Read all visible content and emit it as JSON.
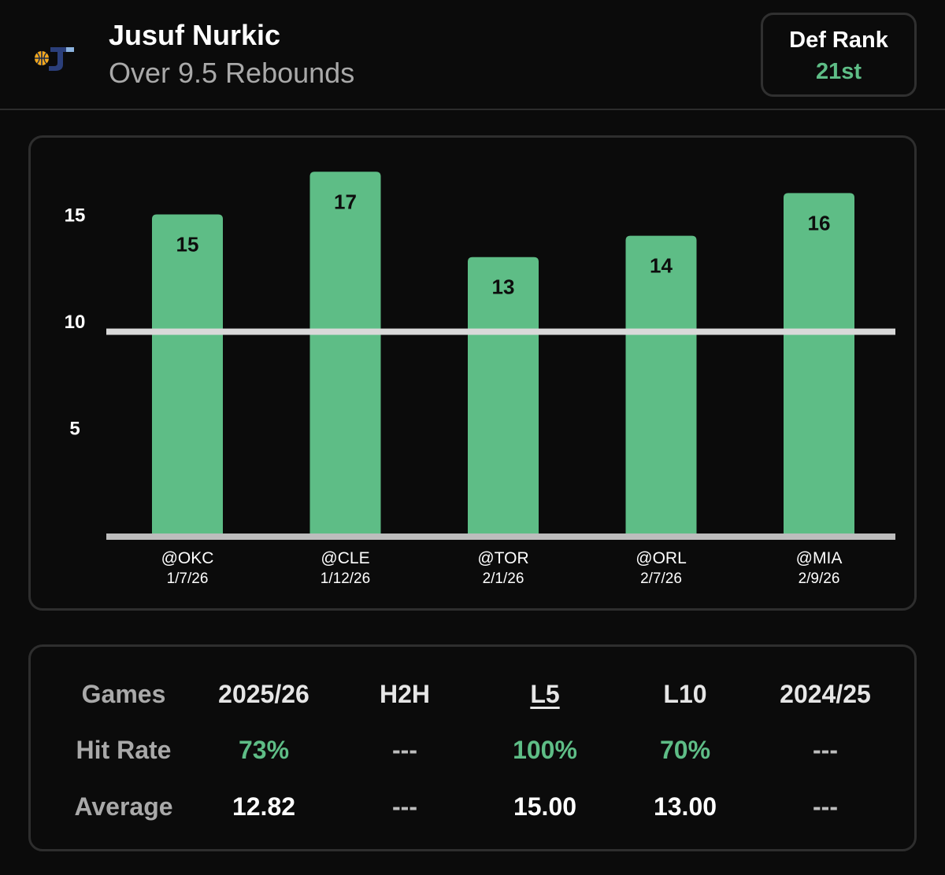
{
  "header": {
    "player_name": "Jusuf Nurkic",
    "prop_line": "Over 9.5 Rebounds",
    "logo_icon": "utah-jazz-logo-icon",
    "def_rank_label": "Def Rank",
    "def_rank_value": "21st"
  },
  "colors": {
    "background": "#0b0b0b",
    "bar": "#5ebd86",
    "accent_green": "#5ebd86",
    "threshold_line": "#d9d9d9",
    "baseline": "#bdbdbd",
    "card_border": "#2e2e2e"
  },
  "chart_data": {
    "type": "bar",
    "title": "",
    "xlabel": "",
    "ylabel": "",
    "categories": [
      "@OKC",
      "@CLE",
      "@TOR",
      "@ORL",
      "@MIA"
    ],
    "dates": [
      "1/7/26",
      "1/12/26",
      "2/1/26",
      "2/7/26",
      "2/9/26"
    ],
    "values": [
      15,
      17,
      13,
      14,
      16
    ],
    "value_labels": [
      "15",
      "17",
      "13",
      "14",
      "16"
    ],
    "yticks": [
      "5",
      "10",
      "15"
    ],
    "ylim": [
      0,
      18.6
    ],
    "threshold": 9.5,
    "grid": false,
    "legend": "none"
  },
  "stats": {
    "columns": [
      "Games",
      "2025/26",
      "H2H",
      "L5",
      "L10",
      "2024/25"
    ],
    "selected_column": "L5",
    "rows": [
      {
        "label": "Hit Rate",
        "values": [
          "73%",
          "---",
          "100%",
          "70%",
          "---"
        ]
      },
      {
        "label": "Average",
        "values": [
          "12.82",
          "---",
          "15.00",
          "13.00",
          "---"
        ]
      }
    ]
  }
}
